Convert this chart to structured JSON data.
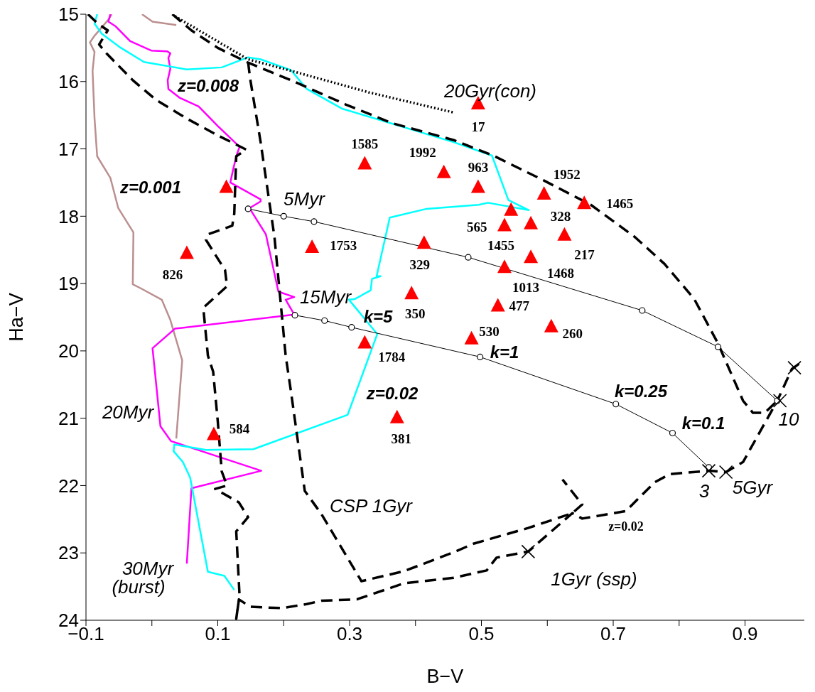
{
  "chart_data": {
    "type": "line",
    "xlabel": "B−V",
    "ylabel": "Ha−V",
    "xlim": [
      -0.1,
      0.99
    ],
    "ylim": [
      24,
      15
    ],
    "xticks": [
      {
        "value": -0.1,
        "label": "−0.1"
      },
      {
        "value": 0,
        "label": null
      },
      0.1,
      {
        "value": 0.2,
        "label": null
      },
      0.3,
      {
        "value": 0.4,
        "label": null
      },
      0.5,
      {
        "value": 0.6,
        "label": null
      },
      0.7,
      {
        "value": 0.8,
        "label": null
      },
      0.9
    ],
    "yticks": [
      15,
      16,
      17,
      18,
      19,
      20,
      21,
      22,
      23,
      24
    ],
    "grid": false,
    "legend": false,
    "series": [
      {
        "color": "#bc8f8f",
        "line_style": "solid",
        "marker": "none",
        "x": [
          -0.061,
          -0.066,
          -0.087,
          -0.094,
          -0.087,
          -0.09,
          -0.087,
          -0.083,
          -0.063,
          -0.051,
          -0.028,
          -0.029,
          -0.017,
          0.015,
          0.028,
          0.046,
          0.037,
          null,
          -0.015,
          0.001,
          0.037
        ],
        "values": [
          15.0,
          15.08,
          15.32,
          15.42,
          15.56,
          15.84,
          16.55,
          17.11,
          17.43,
          17.88,
          18.24,
          19.01,
          19.07,
          19.24,
          19.54,
          20.14,
          21.3,
          null,
          15.0,
          15.11,
          15.16
        ]
      },
      {
        "color": "#ff00ff",
        "line_style": "solid",
        "marker": "none",
        "x": [
          -0.063,
          -0.066,
          -0.055,
          -0.033,
          -0.001,
          0.023,
          0.028,
          0.025,
          0.028,
          0.024,
          0.025,
          0.042,
          0.071,
          0.1,
          0.133,
          0.128,
          0.123,
          0.119,
          0.165,
          0.165,
          0.148,
          0.173,
          0.192,
          0.216,
          0.203,
          0.216,
          0.035,
          0.001,
          0.013,
          0.029,
          0.166,
          0.06,
          0.053
        ],
        "values": [
          15.0,
          15.11,
          15.18,
          15.4,
          15.54,
          15.55,
          15.58,
          15.65,
          15.81,
          15.98,
          16.11,
          16.24,
          16.37,
          16.66,
          16.97,
          17.11,
          17.32,
          17.5,
          17.75,
          17.78,
          17.88,
          18.27,
          19.12,
          19.2,
          19.24,
          19.46,
          19.67,
          19.96,
          21.12,
          21.34,
          21.78,
          22.04,
          23.16
        ]
      },
      {
        "color": "#00ffff",
        "line_style": "solid",
        "marker": "none",
        "x": [
          -0.083,
          -0.087,
          -0.076,
          -0.047,
          -0.012,
          0.053,
          0.106,
          0.146,
          0.165,
          0.211,
          0.235,
          0.288,
          0.458,
          0.516,
          0.541,
          0.572,
          0.51,
          0.496,
          0.417,
          0.361,
          0.341,
          0.347,
          0.334,
          0.332,
          0.308,
          0.299,
          0.342,
          0.297,
          0.154,
          0.082,
          0.034,
          0.033,
          0.047,
          0.058,
          0.085,
          0.11,
          0.125
        ],
        "values": [
          15.0,
          15.14,
          15.29,
          15.5,
          15.71,
          15.82,
          15.79,
          15.64,
          15.67,
          15.83,
          16.11,
          16.4,
          16.9,
          17.1,
          17.76,
          17.91,
          17.8,
          17.83,
          17.89,
          18.02,
          18.89,
          18.89,
          18.93,
          19.1,
          19.23,
          19.24,
          19.75,
          20.95,
          21.46,
          21.47,
          21.39,
          21.49,
          21.65,
          21.88,
          23.28,
          23.34,
          23.55
        ]
      },
      {
        "color": "#000000",
        "line_style": "dashed",
        "marker": "none",
        "x": [
          -0.097,
          -0.082,
          -0.067,
          -0.08,
          -0.069,
          -0.029,
          0.006,
          0.053,
          0.1,
          0.143,
          0.128,
          0.125,
          0.122,
          0.085,
          0.082,
          0.111,
          0.114,
          0.078,
          0.085,
          0.093,
          0.1,
          0.106,
          0.114,
          0.096,
          0.132,
          0.146,
          0.128,
          0.133,
          0.128,
          0.132,
          0.149,
          0.197,
          0.235,
          0.257,
          0.311,
          0.383,
          0.458,
          0.508,
          0.523,
          0.571,
          0.638,
          0.653,
          0.719,
          0.763,
          0.786,
          0.845,
          0.871,
          0.897,
          0.949,
          0.971,
          0.985
        ],
        "values": [
          15.0,
          15.14,
          15.24,
          15.45,
          15.58,
          15.98,
          16.27,
          16.55,
          16.8,
          17.01,
          17.11,
          17.96,
          18.14,
          18.27,
          18.35,
          18.8,
          19.04,
          19.36,
          20.07,
          20.31,
          21.05,
          21.79,
          22.0,
          22.05,
          22.25,
          22.47,
          22.68,
          23.63,
          23.98,
          23.69,
          23.8,
          23.82,
          23.76,
          23.71,
          23.69,
          23.45,
          23.37,
          23.26,
          23.07,
          22.98,
          22.41,
          22.49,
          22.38,
          21.95,
          21.83,
          21.78,
          21.8,
          21.65,
          20.74,
          20.27,
          20.17
        ]
      },
      {
        "color": "#000000",
        "line_style": "dashed",
        "marker": "none",
        "x": [
          0.031,
          0.06,
          0.1,
          0.146,
          0.211,
          0.294,
          0.365,
          0.458,
          0.518,
          0.595,
          0.666,
          0.733,
          0.778,
          0.823,
          0.859,
          0.897,
          0.912,
          0.93,
          0.949
        ],
        "values": [
          15.0,
          15.24,
          15.5,
          15.72,
          15.98,
          16.34,
          16.62,
          16.87,
          17.1,
          17.47,
          17.83,
          18.31,
          18.71,
          19.23,
          19.89,
          20.74,
          20.92,
          20.92,
          20.74
        ]
      },
      {
        "color": "#000000",
        "line_style": "dotted",
        "marker": "none",
        "x": [
          0.035,
          0.146,
          0.211,
          0.329,
          0.458
        ],
        "values": [
          15.03,
          15.67,
          15.84,
          16.16,
          16.46
        ]
      },
      {
        "color": "#000000",
        "line_style": "dashed",
        "marker": "none",
        "x": [
          0.146,
          0.149,
          0.165,
          0.186,
          0.203,
          0.211,
          0.232,
          0.257,
          0.318,
          0.383,
          0.458,
          0.489,
          0.571,
          0.638,
          0.653,
          0.623
        ],
        "values": [
          15.71,
          15.95,
          16.9,
          18.31,
          20.07,
          20.6,
          22.08,
          22.42,
          23.42,
          23.27,
          22.99,
          22.86,
          22.63,
          22.41,
          22.28,
          21.91
        ]
      },
      {
        "color": "#000000",
        "line_style": "solid",
        "marker": "circle",
        "x": [
          0.146,
          0.2,
          0.246,
          0.48,
          0.744,
          0.859,
          0.949
        ],
        "values": [
          17.89,
          18.0,
          18.08,
          18.61,
          19.4,
          19.94,
          20.74
        ]
      },
      {
        "color": "#000000",
        "line_style": "solid",
        "marker": "circle",
        "x": [
          0.217,
          0.262,
          0.303,
          0.498,
          0.704,
          0.79,
          0.845
        ],
        "values": [
          19.47,
          19.55,
          19.65,
          20.09,
          20.79,
          21.22,
          21.73
        ]
      },
      {
        "type": "scatter",
        "color": "#000000",
        "marker": "cross",
        "x": [
          0.571,
          0.845,
          0.871,
          0.953,
          0.975
        ],
        "values": [
          22.98,
          21.78,
          21.8,
          20.74,
          20.25
        ]
      },
      {
        "type": "scatter",
        "color": "#ff0000",
        "marker": "triangle",
        "x": [
          0.495,
          0.323,
          0.443,
          0.495,
          0.595,
          0.656,
          0.113,
          0.545,
          0.575,
          0.535,
          0.626,
          0.243,
          0.053,
          0.413,
          0.575,
          0.535,
          0.394,
          0.525,
          0.606,
          0.485,
          0.323,
          0.094,
          0.372
        ],
        "values": [
          16.33,
          17.22,
          17.35,
          17.57,
          17.67,
          17.81,
          17.57,
          17.91,
          18.11,
          18.14,
          18.28,
          18.46,
          18.55,
          18.4,
          18.61,
          18.76,
          19.15,
          19.33,
          19.64,
          19.82,
          19.88,
          21.24,
          20.99
        ]
      }
    ],
    "annotations": [
      "20Gyr(con)",
      "z=0.008",
      "z=0.001",
      "5Myr",
      "15Myr",
      "k=5",
      "k=1",
      "k=0.25",
      "k=0.1",
      "z=0.02",
      "20Myr",
      "CSP 1Gyr",
      "30Myr",
      "(burst)",
      "1Gyr (ssp)",
      "3",
      "5Gyr",
      "10",
      "z=0.02",
      {
        "text": "17",
        "x": 0.495,
        "y": 16.33
      },
      {
        "text": "1585",
        "x": 0.323,
        "y": 17.22
      },
      {
        "text": "1992",
        "x": 0.443,
        "y": 17.35
      },
      {
        "text": "963",
        "x": 0.495,
        "y": 17.57
      },
      {
        "text": "1952",
        "x": 0.595,
        "y": 17.67
      },
      {
        "text": "1465",
        "x": 0.656,
        "y": 17.81
      },
      {
        "text": "565",
        "x": 0.545,
        "y": 17.91
      },
      {
        "text": "328",
        "x": 0.575,
        "y": 18.11
      },
      {
        "text": "1455",
        "x": 0.535,
        "y": 18.14
      },
      {
        "text": "217",
        "x": 0.626,
        "y": 18.28
      },
      {
        "text": "1753",
        "x": 0.243,
        "y": 18.46
      },
      {
        "text": "826",
        "x": 0.053,
        "y": 18.55
      },
      {
        "text": "329",
        "x": 0.413,
        "y": 18.4
      },
      {
        "text": "1468",
        "x": 0.575,
        "y": 18.61
      },
      {
        "text": "1013",
        "x": 0.535,
        "y": 18.76
      },
      {
        "text": "350",
        "x": 0.394,
        "y": 19.15
      },
      {
        "text": "477",
        "x": 0.525,
        "y": 19.33
      },
      {
        "text": "260",
        "x": 0.606,
        "y": 19.64
      },
      {
        "text": "530",
        "x": 0.485,
        "y": 19.82
      },
      {
        "text": "1784",
        "x": 0.323,
        "y": 19.88
      },
      {
        "text": "584",
        "x": 0.094,
        "y": 21.24
      },
      {
        "text": "381",
        "x": 0.372,
        "y": 20.99
      }
    ]
  }
}
